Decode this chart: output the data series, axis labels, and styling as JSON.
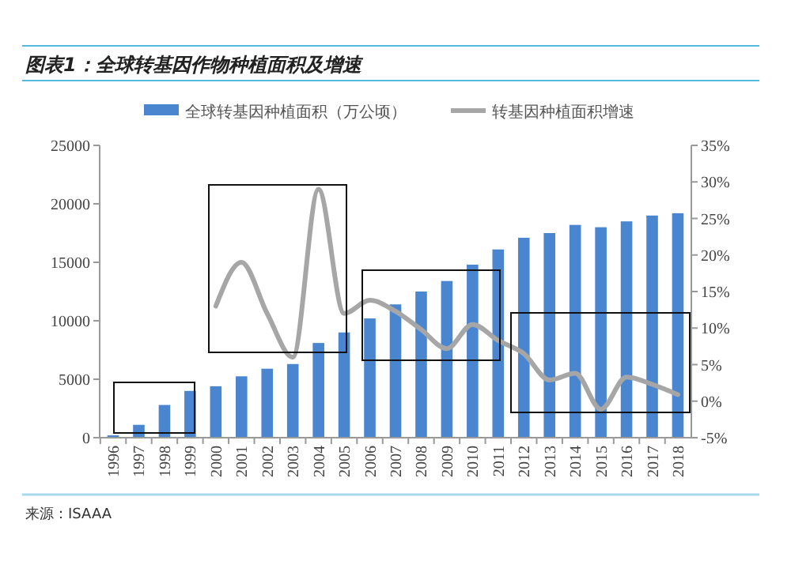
{
  "chart_data": {
    "type": "bar",
    "title": "图表1：全球转基因作物种植面积及增速",
    "categories": [
      "1996",
      "1997",
      "1998",
      "1999",
      "2000",
      "2001",
      "2002",
      "2003",
      "2004",
      "2005",
      "2006",
      "2007",
      "2008",
      "2009",
      "2010",
      "2011",
      "2012",
      "2013",
      "2014",
      "2015",
      "2016",
      "2017",
      "2018"
    ],
    "series": [
      {
        "name": "全球转基因种植面积（万公顷）",
        "color": "#4a86d0",
        "values": [
          200,
          1100,
          2800,
          4000,
          4400,
          5250,
          5900,
          6300,
          8100,
          9000,
          10200,
          11400,
          12500,
          13400,
          14800,
          16100,
          17100,
          17500,
          18200,
          18000,
          18500,
          19000,
          19200
        ]
      },
      {
        "name": "转基因种植面积增速",
        "type": "line",
        "axis": "y2",
        "color": "#a6a6a6",
        "values": [
          null,
          null,
          null,
          null,
          13,
          19,
          12,
          6,
          29,
          12,
          13.8,
          12.3,
          9.8,
          7.2,
          10.5,
          8.3,
          6.5,
          2.9,
          3.8,
          -1.1,
          3.3,
          2.3,
          0.9
        ]
      }
    ],
    "ylim": [
      0,
      25000
    ],
    "yticks": [
      0,
      5000,
      10000,
      15000,
      20000,
      25000
    ],
    "y2lim": [
      -5,
      35
    ],
    "y2ticks": [
      {
        "value": -5,
        "label": "-5%"
      },
      {
        "value": 0,
        "label": "0%"
      },
      {
        "value": 5,
        "label": "5%"
      },
      {
        "value": 10,
        "label": "10%"
      },
      {
        "value": 15,
        "label": "15%"
      },
      {
        "value": 20,
        "label": "20%"
      },
      {
        "value": 25,
        "label": "25%"
      },
      {
        "value": 30,
        "label": "30%"
      },
      {
        "value": 35,
        "label": "35%"
      }
    ],
    "grid": false,
    "legend": "top",
    "line_style": "solid",
    "marker": "none",
    "annotations": [
      "来源：ISAAA"
    ]
  }
}
